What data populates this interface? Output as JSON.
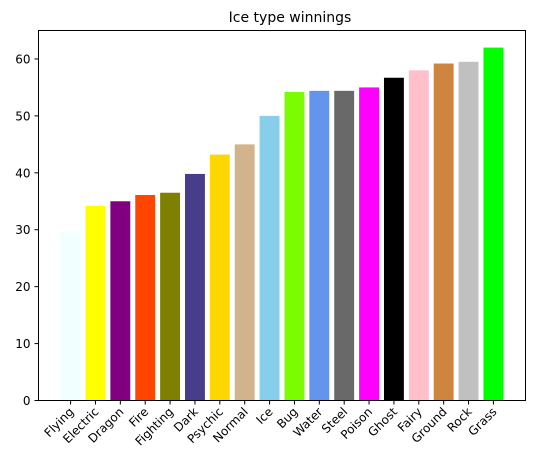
{
  "chart_data": {
    "type": "bar",
    "title": "Ice type winnings",
    "xlabel": "",
    "ylabel": "",
    "ylim": [
      0,
      65
    ],
    "yticks": [
      0,
      10,
      20,
      30,
      40,
      50,
      60
    ],
    "grid": false,
    "legend": "none",
    "categories": [
      "Flying",
      "Electric",
      "Dragon",
      "Fire",
      "Fighting",
      "Dark",
      "Psychic",
      "Normal",
      "Ice",
      "Bug",
      "Water",
      "Steel",
      "Poison",
      "Ghost",
      "Fairy",
      "Ground",
      "Rock",
      "Grass"
    ],
    "values": [
      29.5,
      34.2,
      35.0,
      36.1,
      36.5,
      39.8,
      43.2,
      45.0,
      50.0,
      54.2,
      54.4,
      54.4,
      55.0,
      56.7,
      58.0,
      59.2,
      59.5,
      62.0
    ],
    "colors": [
      "#f0ffff",
      "#ffff00",
      "#800080",
      "#ff4500",
      "#808000",
      "#483d8b",
      "#ffd700",
      "#d2b48c",
      "#87ceeb",
      "#7cfc00",
      "#6495ed",
      "#696969",
      "#ff00ff",
      "#000000",
      "#ffc0cb",
      "#cd853f",
      "#c0c0c0",
      "#00ff00"
    ]
  }
}
